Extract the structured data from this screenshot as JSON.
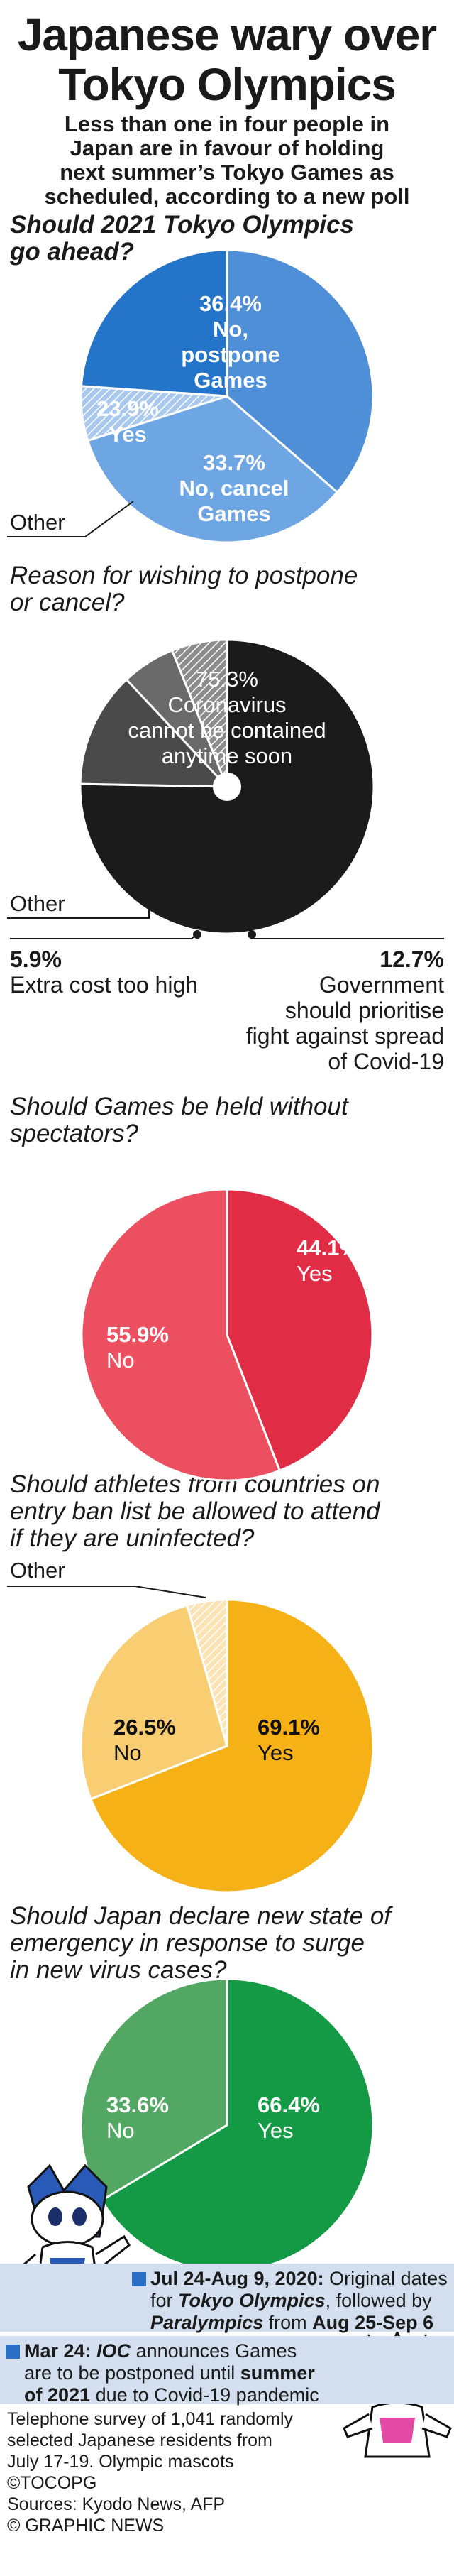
{
  "header": {
    "title_line1": "Japanese wary over",
    "title_line2": "Tokyo Olympics",
    "subtitle_lines": [
      "Less than one in four people in",
      "Japan are in favour of holding",
      "next summer’s Tokyo Games as",
      "scheduled, according to a new poll"
    ]
  },
  "chart_data": [
    {
      "type": "pie",
      "question_lines": [
        "Should 2021 Tokyo Olympics",
        "go ahead?"
      ],
      "slices": [
        {
          "label_lines": [
            "No,",
            "postpone",
            "Games"
          ],
          "pct_text": "36.4%",
          "value": 36.4,
          "color": "#4f8fd8"
        },
        {
          "label_lines": [
            "No, cancel",
            "Games"
          ],
          "pct_text": "33.7%",
          "value": 33.7,
          "color": "#6ea5e3"
        },
        {
          "label_lines": [],
          "pct_text": "",
          "value": 6.0,
          "color": "#a9c8ee"
        },
        {
          "label_lines": [
            "Yes"
          ],
          "pct_text": "23.9%",
          "value": 23.9,
          "color": "#2475c9"
        }
      ],
      "callout": "Other"
    },
    {
      "type": "pie",
      "question_lines": [
        "Reason for wishing to postpone",
        "or cancel?"
      ],
      "slices": [
        {
          "label_lines": [
            "Coronavirus",
            "cannot be contained",
            "anytime soon"
          ],
          "pct_text": "75.3%",
          "value": 75.3,
          "color": "#1b1b1b"
        },
        {
          "label_lines": [
            "Government",
            "should prioritise",
            "fight against spread",
            "of Covid-19"
          ],
          "pct_text": "12.7%",
          "value": 12.7,
          "color": "#4a4a4a"
        },
        {
          "label_lines": [
            "Extra cost too high"
          ],
          "pct_text": "5.9%",
          "value": 5.9,
          "color": "#6a6a6a"
        },
        {
          "label_lines": [],
          "pct_text": "",
          "value": 6.1,
          "color": "#8c8c8c"
        }
      ],
      "callout": "Other"
    },
    {
      "type": "pie",
      "question_lines": [
        "Should Games be held without",
        "spectators?"
      ],
      "slices": [
        {
          "label_lines": [
            "Yes"
          ],
          "pct_text": "44.1%",
          "value": 44.1,
          "color": "#e02c45"
        },
        {
          "label_lines": [
            "No"
          ],
          "pct_text": "55.9%",
          "value": 55.9,
          "color": "#ec5060"
        }
      ]
    },
    {
      "type": "pie",
      "question_lines": [
        "Should athletes from countries on",
        "entry ban list be allowed to attend",
        "if they are uninfected?"
      ],
      "slices": [
        {
          "label_lines": [
            "Yes"
          ],
          "pct_text": "69.1%",
          "value": 69.1,
          "color": "#f6b117"
        },
        {
          "label_lines": [
            "No"
          ],
          "pct_text": "26.5%",
          "value": 26.5,
          "color": "#f9cd72"
        },
        {
          "label_lines": [],
          "pct_text": "",
          "value": 4.4,
          "color": "#fbe3b3"
        }
      ],
      "callout": "Other"
    },
    {
      "type": "pie",
      "question_lines": [
        "Should Japan declare new state of",
        "emergency in response to surge",
        "in new virus cases?"
      ],
      "slices": [
        {
          "label_lines": [
            "Yes"
          ],
          "pct_text": "66.4%",
          "value": 66.4,
          "color": "#149a45"
        },
        {
          "label_lines": [
            "No"
          ],
          "pct_text": "33.6%",
          "value": 33.6,
          "color": "#52a862"
        }
      ]
    }
  ],
  "timeline": {
    "item1": {
      "lines": [
        [
          "Jul 24-Aug 9, 2020:",
          " Original dates"
        ],
        [
          "for ",
          "Tokyo Olympics",
          ", followed by"
        ],
        [
          "Paralympics",
          " from ",
          "Aug 25-Sep 6"
        ]
      ]
    },
    "item2": {
      "lines": [
        [
          "Mar 24: ",
          "IOC",
          " announces Games"
        ],
        [
          "are to be postponed until ",
          "summer"
        ],
        [
          "of 2021",
          " due to Covid-19 pandemic"
        ]
      ]
    },
    "accent": "#2a6fc6"
  },
  "footer": {
    "lines": [
      "Telephone survey of 1,041 randomly",
      "selected Japanese residents from",
      "July 17-19. Olympic mascots ©TOCOPG",
      "Sources: Kyodo News, AFP",
      "© GRAPHIC NEWS"
    ]
  }
}
